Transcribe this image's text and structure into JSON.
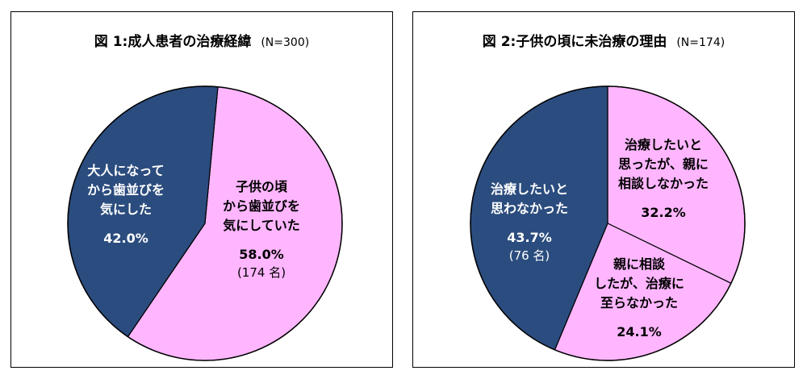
{
  "chart_data": [
    {
      "type": "pie",
      "title": "図 1:成人患者の治療経緯",
      "sample": "(N=300)",
      "slices": [
        {
          "label_lines": [
            "子供の頃",
            "から歯並びを",
            "気にしていた"
          ],
          "value": 58.0,
          "pct": "58.0%",
          "count": "(174 名)",
          "color": "#FFB6FF"
        },
        {
          "label_lines": [
            "大人になって",
            "から歯並びを",
            "気にした"
          ],
          "value": 42.0,
          "pct": "42.0%",
          "count": "",
          "color": "#2B4C7E"
        }
      ]
    },
    {
      "type": "pie",
      "title": "図 2:子供の頃に未治療の理由",
      "sample": "(N=174)",
      "slices": [
        {
          "label_lines": [
            "治療したいと",
            "思ったが、親に",
            "相談しなかった"
          ],
          "value": 32.2,
          "pct": "32.2%",
          "count": "",
          "color": "#FFB6FF"
        },
        {
          "label_lines": [
            "親に相談",
            "したが、治療に",
            "至らなかった"
          ],
          "value": 24.1,
          "pct": "24.1%",
          "count": "",
          "color": "#FFB6FF"
        },
        {
          "label_lines": [
            "治療したいと",
            "思わなかった"
          ],
          "value": 43.7,
          "pct": "43.7%",
          "count": "(76 名)",
          "color": "#2B4C7E"
        }
      ]
    }
  ]
}
